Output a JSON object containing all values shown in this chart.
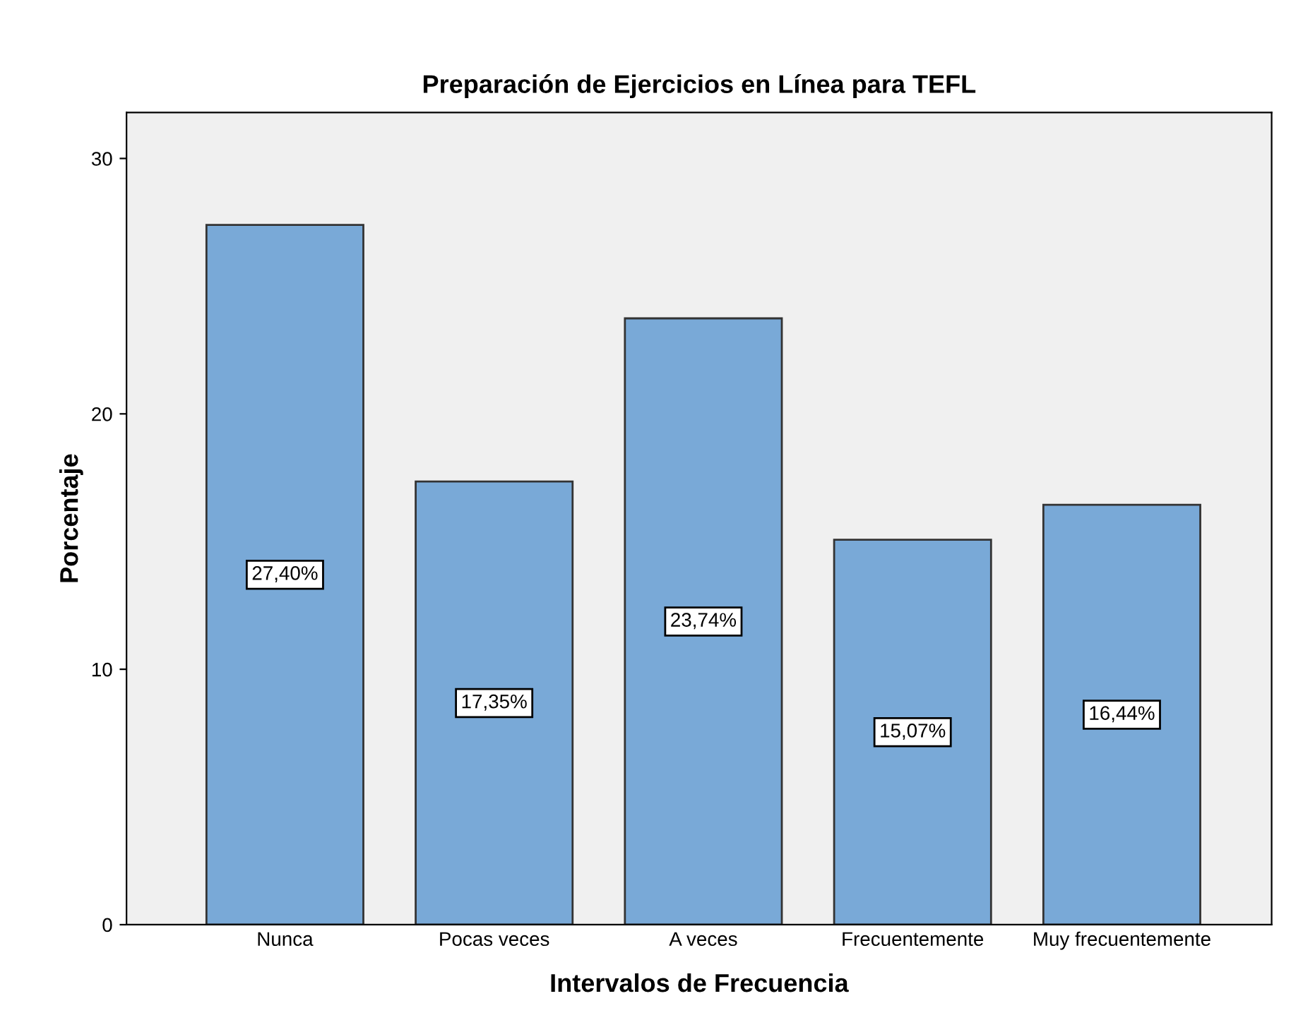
{
  "chart_data": {
    "type": "bar",
    "title": "Preparación de Ejercicios en Línea para TEFL",
    "xlabel": "Intervalos de Frecuencia",
    "ylabel": "Porcentaje",
    "categories": [
      "Nunca",
      "Pocas veces",
      "A veces",
      "Frecuentemente",
      "Muy frecuentemente"
    ],
    "values": [
      27.4,
      17.35,
      23.74,
      15.07,
      16.44
    ],
    "value_labels": [
      "27,40%",
      "17,35%",
      "23,74%",
      "15,07%",
      "16,44%"
    ],
    "color": "#79a9d7",
    "ylim": [
      0,
      31.8
    ],
    "yticks": [
      0,
      10,
      20,
      30
    ],
    "grid": false,
    "legend": false
  }
}
